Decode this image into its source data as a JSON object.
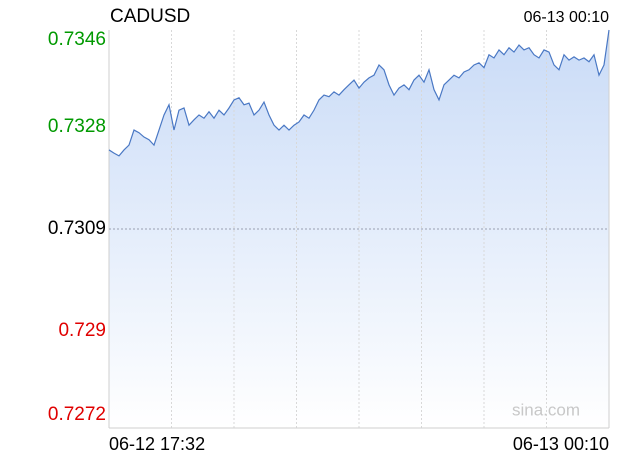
{
  "chart_data": {
    "type": "line",
    "title": "CADUSD",
    "last_time": "06-13 00:10",
    "watermark": "sina.com",
    "color": "#4a78c4",
    "up_color": "#009900",
    "down_color": "#e00000",
    "reference_value": 0.7309,
    "ylim": [
      0.7272,
      0.7346
    ],
    "yticks": [
      0.7346,
      0.7328,
      0.7309,
      0.729,
      0.7272
    ],
    "xlim": [
      0,
      100
    ],
    "xticks": [
      {
        "value": 0,
        "label": "06-12 17:32"
      },
      {
        "value": 100,
        "label": "06-13 00:10"
      }
    ],
    "x_grid_divisions": 8,
    "values": [
      0.73237,
      0.73231,
      0.73226,
      0.73237,
      0.73246,
      0.73274,
      0.73269,
      0.73261,
      0.73256,
      0.73246,
      0.73274,
      0.73302,
      0.73321,
      0.73274,
      0.73311,
      0.73315,
      0.73283,
      0.73293,
      0.73302,
      0.73296,
      0.73308,
      0.73296,
      0.73311,
      0.73302,
      0.73315,
      0.7333,
      0.73334,
      0.73321,
      0.73324,
      0.73302,
      0.73311,
      0.73326,
      0.73302,
      0.73283,
      0.73274,
      0.73283,
      0.73274,
      0.73283,
      0.73289,
      0.73302,
      0.73296,
      0.73311,
      0.7333,
      0.73339,
      0.73336,
      0.73345,
      0.73339,
      0.73349,
      0.73358,
      0.73367,
      0.73352,
      0.73363,
      0.73371,
      0.73376,
      0.73395,
      0.73386,
      0.73358,
      0.73339,
      0.73352,
      0.73358,
      0.73349,
      0.73367,
      0.73376,
      0.73363,
      0.73386,
      0.73349,
      0.7333,
      0.73358,
      0.73367,
      0.73376,
      0.73371,
      0.73382,
      0.73386,
      0.73395,
      0.73399,
      0.7339,
      0.73414,
      0.73408,
      0.73423,
      0.73414,
      0.73427,
      0.73419,
      0.73432,
      0.73423,
      0.73427,
      0.73414,
      0.73408,
      0.73423,
      0.73419,
      0.73395,
      0.73386,
      0.73414,
      0.73404,
      0.7341,
      0.73404,
      0.73408,
      0.73401,
      0.73414,
      0.73376,
      0.73395,
      0.7346
    ]
  }
}
